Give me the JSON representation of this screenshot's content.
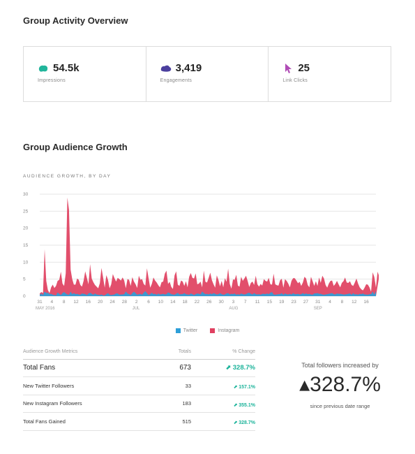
{
  "activity": {
    "title": "Group Activity Overview",
    "cards": [
      {
        "value": "54.5k",
        "label": "Impressions",
        "icon": "impressions-icon",
        "color": "#21b59b"
      },
      {
        "value": "3,419",
        "label": "Engagements",
        "icon": "engagements-icon",
        "color": "#4b3f9e"
      },
      {
        "value": "25",
        "label": "Link Clicks",
        "icon": "link-clicks-icon",
        "color": "#b04cb6"
      }
    ]
  },
  "growth": {
    "title": "Group Audience Growth",
    "chart_label": "AUDIENCE GROWTH, BY DAY"
  },
  "chart_data": {
    "type": "area",
    "title": "AUDIENCE GROWTH, BY DAY",
    "y_ticks": [
      "30",
      "25",
      "20",
      "15",
      "10",
      "5",
      "0"
    ],
    "ylim": [
      0,
      30
    ],
    "x_ticks": [
      "31",
      "4",
      "8",
      "12",
      "16",
      "20",
      "24",
      "28",
      "2",
      "6",
      "10",
      "14",
      "18",
      "22",
      "26",
      "30",
      "3",
      "7",
      "11",
      "15",
      "19",
      "23",
      "27",
      "31",
      "4",
      "8",
      "12",
      "16"
    ],
    "month_labels": [
      {
        "text": "MAY 2016",
        "tick": 0
      },
      {
        "text": "JUL",
        "tick": 8
      },
      {
        "text": "AUG",
        "tick": 16
      },
      {
        "text": "SEP",
        "tick": 23
      }
    ],
    "grid": true,
    "series": [
      {
        "name": "Twitter",
        "color": "#2e9fd8",
        "values": [
          0.4,
          0.8,
          0.3,
          1.4,
          0.9,
          1.0,
          0.6,
          0.7,
          0.4,
          0.3,
          0.2,
          1.1,
          0.7,
          0.3,
          0.9,
          1.2,
          0.8,
          0.5,
          0.4,
          1.3,
          0.6,
          0.9,
          0.6,
          0.7,
          0.5,
          0.4,
          0.8,
          0.7,
          0.6,
          0.3,
          0.8,
          1.0,
          0.7,
          0.4,
          0.8,
          0.5,
          0.4,
          0.3,
          0.5,
          0.2,
          0.2,
          0.6,
          0.9,
          0.4,
          0.3,
          0.4,
          0.5,
          0.8,
          0.8,
          0.4,
          0.5,
          0.5,
          0.6,
          1.4,
          0.8,
          0.6,
          0.3,
          0.9,
          1.3,
          0.9,
          0.4,
          0.6,
          0.7,
          0.4,
          1.0,
          1.5,
          0.9,
          0.3,
          0.6,
          1.0,
          0.6,
          0.7,
          0.4,
          0.8,
          0.5,
          0.6,
          0.7,
          0.5,
          0.6,
          1.1,
          0.9,
          0.6,
          0.5,
          0.4,
          0.7,
          1.0,
          0.5,
          0.6,
          0.6,
          0.9,
          0.6,
          0.5,
          0.4,
          0.8,
          0.6,
          0.3,
          0.6,
          0.8,
          0.7,
          0.5,
          1.4,
          0.9,
          0.6,
          0.7,
          0.5,
          0.8,
          0.6,
          0.9,
          0.7,
          0.5,
          0.6,
          0.9,
          0.6,
          0.4,
          0.5,
          0.8,
          0.9,
          0.5,
          0.7,
          0.6,
          0.8,
          0.4,
          0.6,
          0.4,
          0.8,
          0.6,
          0.5,
          0.6,
          0.9,
          1.0,
          0.7,
          0.5,
          0.9,
          0.6,
          0.5,
          0.6,
          0.4,
          0.7,
          0.7,
          0.6,
          0.8,
          0.6,
          1.0,
          1.2,
          0.5,
          0.4,
          0.5,
          0.6,
          0.6,
          0.9,
          0.4,
          0.8,
          0.6,
          0.5,
          0.7,
          0.5,
          0.9,
          0.6,
          0.6,
          0.7,
          0.5,
          0.6,
          0.9,
          0.6,
          0.8,
          0.6,
          0.7,
          0.5,
          0.4,
          0.8,
          0.8,
          0.9,
          0.7,
          0.7,
          0.5,
          0.4,
          0.5,
          0.6,
          0.7,
          0.8,
          0.9,
          0.6,
          0.5,
          0.8,
          0.7,
          0.7,
          0.6,
          0.5,
          0.5,
          0.6,
          0.7,
          0.8,
          0.4,
          0.9,
          0.5,
          0.6,
          0.4,
          0.7,
          0.6,
          0.8,
          0.5,
          0.5,
          0.4,
          0.6,
          0.6,
          1.3,
          0.5,
          1.5
        ]
      },
      {
        "name": "Instagram",
        "color": "#e04060",
        "values": [
          0.8,
          1.2,
          0.9,
          13.8,
          4.5,
          1.8,
          0.9,
          2.6,
          3.4,
          2.4,
          3.0,
          4.5,
          4.8,
          7.2,
          3.7,
          3.0,
          6.7,
          29.0,
          25.4,
          7.8,
          5.0,
          3.4,
          3.4,
          5.2,
          4.8,
          3.3,
          2.8,
          4.5,
          7.3,
          5.4,
          3.5,
          9.4,
          5.2,
          4.1,
          3.3,
          2.8,
          2.3,
          3.8,
          8.3,
          5.5,
          2.5,
          6.2,
          4.8,
          2.3,
          3.5,
          6.5,
          5.3,
          4.3,
          5.4,
          5.0,
          4.6,
          5.5,
          4.6,
          2.3,
          5.0,
          4.8,
          3.0,
          5.6,
          4.3,
          3.5,
          2.4,
          6.0,
          4.8,
          5.0,
          3.6,
          3.1,
          8.2,
          5.3,
          2.5,
          3.6,
          5.5,
          4.6,
          4.0,
          3.2,
          2.6,
          4.1,
          4.3,
          6.6,
          7.5,
          3.6,
          4.2,
          2.7,
          2.1,
          6.1,
          7.3,
          3.4,
          3.0,
          4.6,
          4.3,
          3.0,
          4.4,
          2.6,
          5.7,
          6.8,
          5.4,
          5.2,
          6.7,
          3.5,
          3.7,
          4.3,
          2.6,
          7.5,
          4.2,
          4.0,
          5.4,
          6.9,
          4.7,
          3.5,
          2.5,
          6.1,
          4.8,
          2.9,
          4.5,
          2.6,
          5.3,
          4.2,
          8.1,
          3.6,
          2.2,
          4.9,
          4.8,
          6.3,
          3.1,
          2.8,
          5.7,
          4.5,
          5.2,
          6.0,
          4.5,
          2.7,
          3.9,
          4.3,
          3.3,
          6.0,
          3.5,
          2.8,
          3.6,
          3.1,
          5.0,
          4.5,
          4.3,
          5.4,
          3.5,
          3.4,
          6.6,
          3.5,
          3.2,
          3.1,
          4.7,
          5.1,
          2.5,
          5.0,
          4.5,
          3.7,
          2.6,
          4.5,
          5.3,
          5.3,
          4.6,
          3.8,
          4.2,
          3.0,
          4.0,
          5.7,
          5.2,
          3.3,
          2.6,
          5.7,
          4.4,
          3.0,
          4.4,
          3.0,
          5.5,
          3.9,
          6.0,
          5.2,
          3.3,
          2.5,
          3.7,
          4.5,
          4.6,
          3.0,
          3.6,
          4.5,
          3.5,
          2.6,
          3.9,
          4.4,
          5.5,
          4.0,
          3.9,
          4.4,
          3.3,
          3.0,
          4.0,
          5.2,
          3.7,
          2.6,
          2.0,
          1.7,
          2.5,
          3.5,
          3.4,
          2.6,
          1.3,
          7.0,
          5.6,
          2.5,
          7.2,
          5.8
        ]
      }
    ]
  },
  "legend": {
    "twitter": "Twitter",
    "instagram": "Instagram",
    "twitter_color": "#2e9fd8",
    "instagram_color": "#e04060"
  },
  "metrics": {
    "headers": [
      "Audience Growth Metrics",
      "Totals",
      "% Change"
    ],
    "rows": [
      {
        "label": "Total Fans",
        "total": "673",
        "change": "328.7%"
      },
      {
        "label": "New Twitter Followers",
        "total": "33",
        "change": "157.1%"
      },
      {
        "label": "New Instagram Followers",
        "total": "183",
        "change": "355.1%"
      },
      {
        "label": "Total Fans Gained",
        "total": "515",
        "change": "328.7%"
      }
    ]
  },
  "summary": {
    "title": "Total followers increased by",
    "value": "328.7%",
    "subtitle": "since previous date range"
  }
}
